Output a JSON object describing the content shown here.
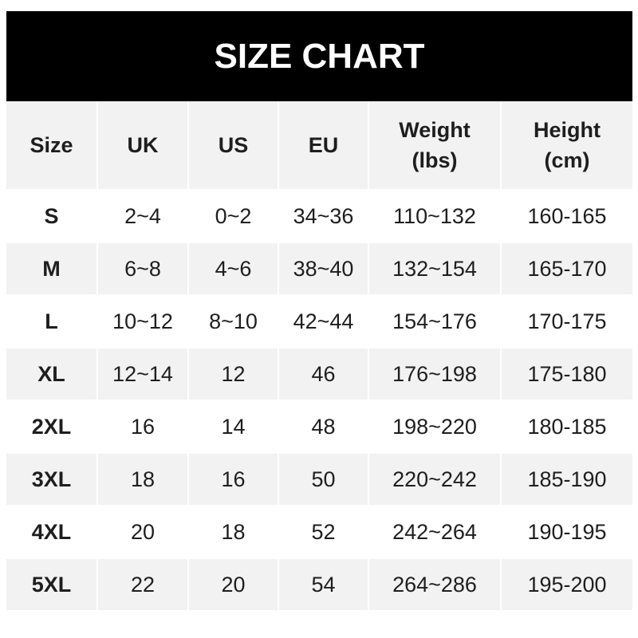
{
  "title": "SIZE CHART",
  "headers": [
    "Size",
    "UK",
    "US",
    "EU",
    "Weight\n(lbs)",
    "Height\n(cm)"
  ],
  "rows": [
    [
      "S",
      "2~4",
      "0~2",
      "34~36",
      "110~132",
      "160-165"
    ],
    [
      "M",
      "6~8",
      "4~6",
      "38~40",
      "132~154",
      "165-170"
    ],
    [
      "L",
      "10~12",
      "8~10",
      "42~44",
      "154~176",
      "170-175"
    ],
    [
      "XL",
      "12~14",
      "12",
      "46",
      "176~198",
      "175-180"
    ],
    [
      "2XL",
      "16",
      "14",
      "48",
      "198~220",
      "180-185"
    ],
    [
      "3XL",
      "18",
      "16",
      "50",
      "220~242",
      "185-190"
    ],
    [
      "4XL",
      "20",
      "18",
      "52",
      "242~264",
      "190-195"
    ],
    [
      "5XL",
      "22",
      "20",
      "54",
      "264~286",
      "195-200"
    ]
  ],
  "colors": {
    "header_bg": "#000000",
    "stripe": "#f2f2f2",
    "text": "#1e1e1e"
  }
}
